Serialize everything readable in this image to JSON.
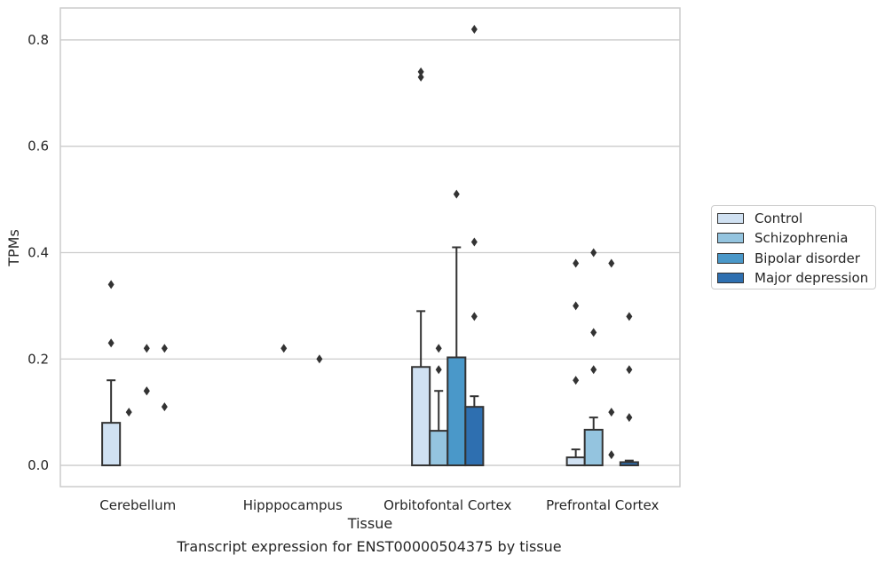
{
  "chart_data": {
    "type": "bar",
    "categories": [
      "Cerebellum",
      "Hipppocampus",
      "Orbitofontal Cortex",
      "Prefrontal Cortex"
    ],
    "xlabel": "Tissue",
    "ylabel": "TPMs",
    "ylim": [
      -0.04,
      0.86
    ],
    "yticks": [
      "0.0",
      "0.2",
      "0.4",
      "0.6",
      "0.8"
    ],
    "grid": "horizontal",
    "legend_position": "right",
    "series": [
      {
        "name": "Control",
        "color": "#d0e1f2",
        "values": [
          0.08,
          0.0,
          0.185,
          0.015
        ],
        "errors": [
          0.16,
          null,
          0.29,
          0.03
        ],
        "outliers": [
          [
            0.23,
            0.34
          ],
          [],
          [
            0.73,
            0.74
          ],
          [
            0.16,
            0.3,
            0.38
          ]
        ]
      },
      {
        "name": "Schizophrenia",
        "color": "#94c4df",
        "values": [
          0.0,
          0.0,
          0.065,
          0.067
        ],
        "errors": [
          null,
          null,
          0.14,
          0.09
        ],
        "outliers": [
          [
            0.1
          ],
          [
            0.22
          ],
          [
            0.18,
            0.22
          ],
          [
            0.18,
            0.25,
            0.4
          ]
        ]
      },
      {
        "name": "Bipolar disorder",
        "color": "#4a98c9",
        "values": [
          0.0,
          0.0,
          0.203,
          0.0
        ],
        "errors": [
          null,
          null,
          0.41,
          null
        ],
        "outliers": [
          [
            0.14,
            0.14,
            0.22
          ],
          [],
          [
            0.51
          ],
          [
            0.02,
            0.1,
            0.38
          ]
        ]
      },
      {
        "name": "Major depression",
        "color": "#2e6fb0",
        "values": [
          0.0,
          0.0,
          0.11,
          0.006
        ],
        "errors": [
          null,
          null,
          0.13,
          0.009
        ],
        "outliers": [
          [
            0.11,
            0.22
          ],
          [
            0.2
          ],
          [
            0.28,
            0.42,
            0.82
          ],
          [
            0.09,
            0.18,
            0.28
          ]
        ]
      }
    ]
  },
  "caption": "Transcript expression for ENST00000504375 by tissue"
}
